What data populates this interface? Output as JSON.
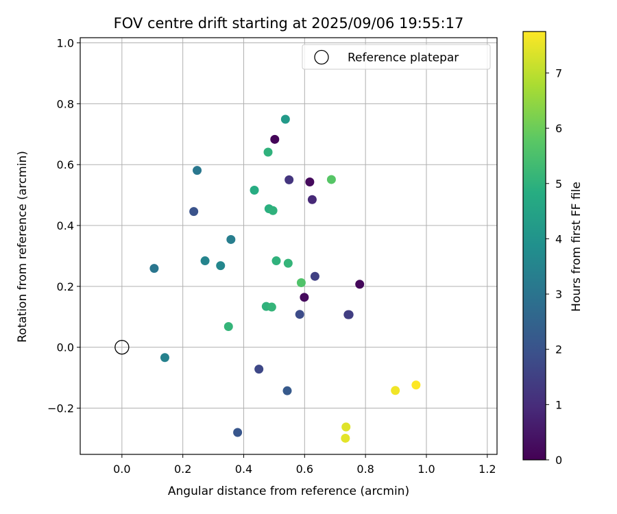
{
  "chart_data": {
    "type": "scatter",
    "title": "FOV centre drift starting at 2025/09/06 19:55:17",
    "xlabel": "Angular distance from reference (arcmin)",
    "ylabel": "Rotation from reference (arcmin)",
    "xlim": [
      -0.137,
      1.232
    ],
    "ylim": [
      -0.352,
      1.017
    ],
    "xticks": [
      0.0,
      0.2,
      0.4,
      0.6,
      0.8,
      1.0,
      1.2
    ],
    "xtick_labels": [
      "0.0",
      "0.2",
      "0.4",
      "0.6",
      "0.8",
      "1.0",
      "1.2"
    ],
    "yticks": [
      -0.2,
      0.0,
      0.2,
      0.4,
      0.6,
      0.8,
      1.0
    ],
    "ytick_labels": [
      "−0.2",
      "0.0",
      "0.2",
      "0.4",
      "0.6",
      "0.8",
      "1.0"
    ],
    "grid": true,
    "legend": {
      "label": "Reference platepar",
      "location": "top-right"
    },
    "reference_point": {
      "x": 0.0,
      "y": 0.0
    },
    "colorbar": {
      "label": "Hours from first FF file",
      "colormap": "viridis",
      "range": [
        0,
        7.75
      ],
      "ticks": [
        0,
        1,
        2,
        3,
        4,
        5,
        6,
        7
      ],
      "tick_labels": [
        "0",
        "1",
        "2",
        "3",
        "4",
        "5",
        "6",
        "7"
      ]
    },
    "points": [
      {
        "x": 0.502,
        "y": 0.683,
        "hours": 0.1
      },
      {
        "x": 0.617,
        "y": 0.543,
        "hours": 0.2
      },
      {
        "x": 0.781,
        "y": 0.207,
        "hours": 0.15
      },
      {
        "x": 0.599,
        "y": 0.164,
        "hours": 0.2
      },
      {
        "x": 0.625,
        "y": 0.485,
        "hours": 0.9
      },
      {
        "x": 0.549,
        "y": 0.55,
        "hours": 1.2
      },
      {
        "x": 0.634,
        "y": 0.233,
        "hours": 1.5
      },
      {
        "x": 0.743,
        "y": 0.107,
        "hours": 1.4
      },
      {
        "x": 0.746,
        "y": 0.107,
        "hours": 1.45
      },
      {
        "x": 0.584,
        "y": 0.108,
        "hours": 1.8
      },
      {
        "x": 0.45,
        "y": -0.072,
        "hours": 1.7
      },
      {
        "x": 0.236,
        "y": 0.446,
        "hours": 2.0
      },
      {
        "x": 0.543,
        "y": -0.143,
        "hours": 2.2
      },
      {
        "x": 0.38,
        "y": -0.28,
        "hours": 2.1
      },
      {
        "x": 0.106,
        "y": 0.259,
        "hours": 3.05
      },
      {
        "x": 0.247,
        "y": 0.581,
        "hours": 3.1
      },
      {
        "x": 0.358,
        "y": 0.354,
        "hours": 3.3
      },
      {
        "x": 0.273,
        "y": 0.284,
        "hours": 3.5
      },
      {
        "x": 0.324,
        "y": 0.268,
        "hours": 3.6
      },
      {
        "x": 0.141,
        "y": -0.034,
        "hours": 3.4
      },
      {
        "x": 0.537,
        "y": 0.749,
        "hours": 4.2
      },
      {
        "x": 0.435,
        "y": 0.516,
        "hours": 4.8
      },
      {
        "x": 0.483,
        "y": 0.455,
        "hours": 4.9
      },
      {
        "x": 0.496,
        "y": 0.449,
        "hours": 5.0
      },
      {
        "x": 0.48,
        "y": 0.641,
        "hours": 5.0
      },
      {
        "x": 0.507,
        "y": 0.284,
        "hours": 5.0
      },
      {
        "x": 0.546,
        "y": 0.276,
        "hours": 5.1
      },
      {
        "x": 0.474,
        "y": 0.134,
        "hours": 5.0
      },
      {
        "x": 0.492,
        "y": 0.132,
        "hours": 5.1
      },
      {
        "x": 0.35,
        "y": 0.068,
        "hours": 5.1
      },
      {
        "x": 0.589,
        "y": 0.212,
        "hours": 5.6
      },
      {
        "x": 0.688,
        "y": 0.551,
        "hours": 5.7
      },
      {
        "x": 0.736,
        "y": -0.262,
        "hours": 7.4
      },
      {
        "x": 0.734,
        "y": -0.299,
        "hours": 7.45
      },
      {
        "x": 0.898,
        "y": -0.142,
        "hours": 7.6
      },
      {
        "x": 0.966,
        "y": -0.124,
        "hours": 7.75
      }
    ]
  }
}
